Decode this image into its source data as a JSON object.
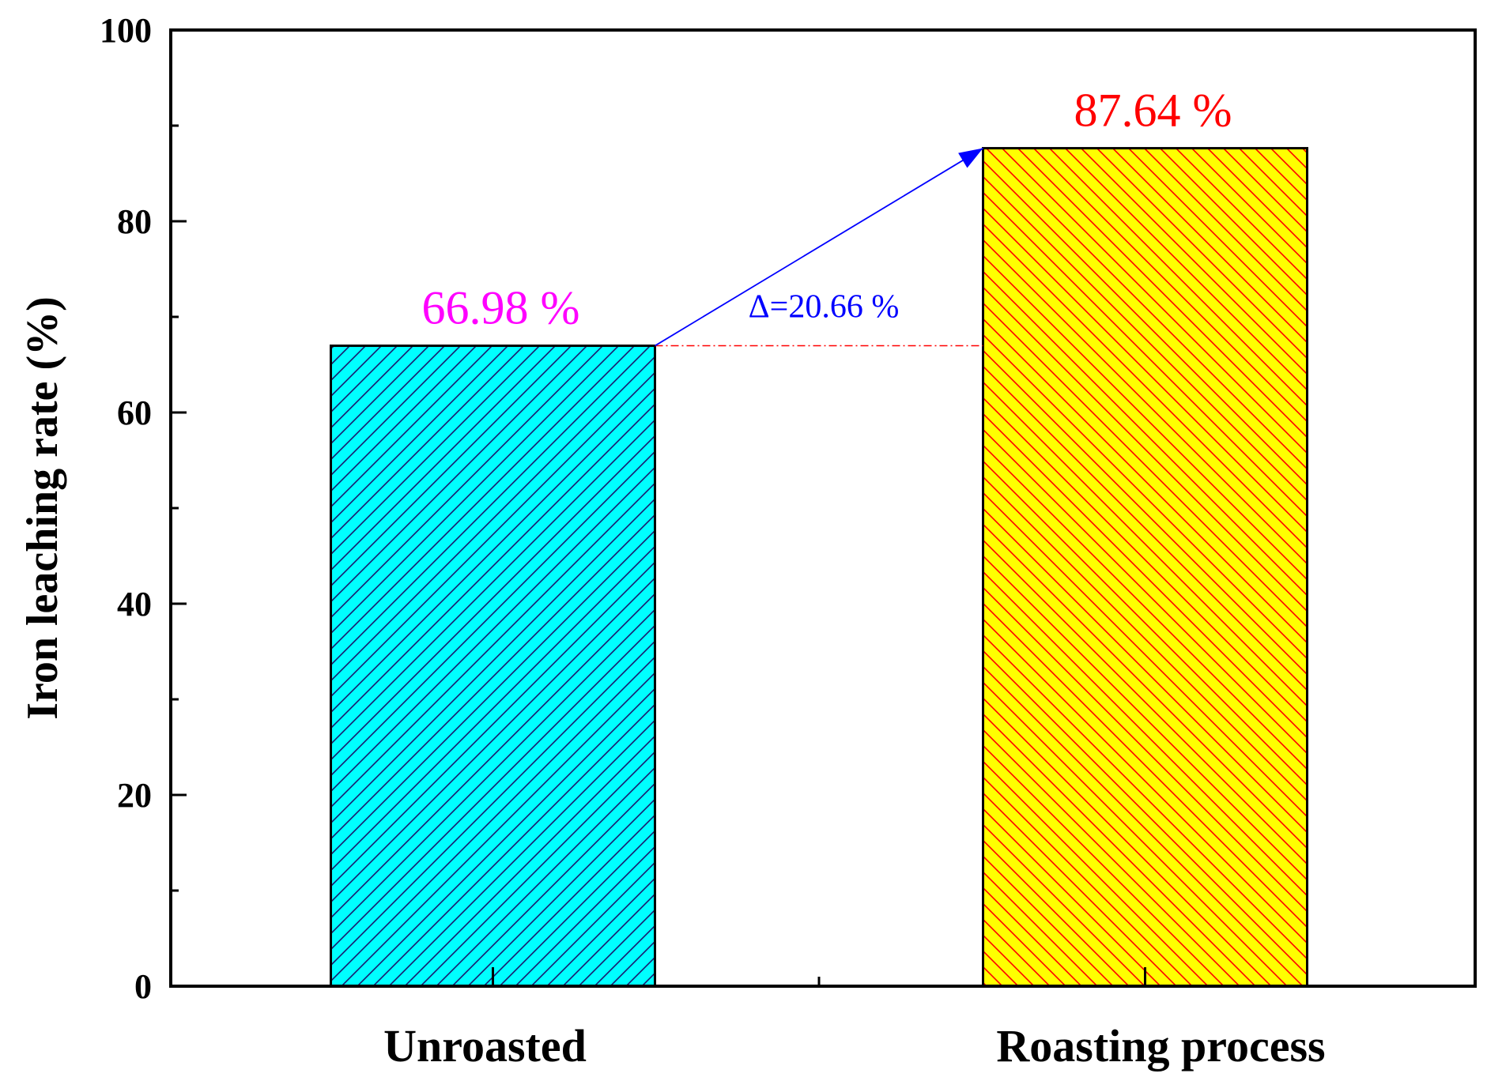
{
  "chart_data": {
    "type": "bar",
    "categories": [
      "Unroasted",
      "Roasting process"
    ],
    "values": [
      66.98,
      87.64
    ],
    "bar_colors": [
      "#00FFFF",
      "#FFFF00"
    ],
    "hatch_colors": [
      "#1a1a6e",
      "#FF0000"
    ],
    "hatch_directions": [
      "forward",
      "backward"
    ],
    "data_labels": [
      "66.98 %",
      "87.64 %"
    ],
    "data_label_colors": [
      "#FF00FF",
      "#FF0000"
    ],
    "annotation": {
      "text": "Δ=20.66 %",
      "color": "#0000FF",
      "from": "Unroasted",
      "to": "Roasting process"
    },
    "ylabel": "Iron leaching rate (%)",
    "xlabel": "",
    "ylim": [
      0,
      100
    ],
    "yticks": [
      "0",
      "20",
      "40",
      "60",
      "80",
      "100"
    ],
    "grid": false,
    "legend": "none"
  }
}
